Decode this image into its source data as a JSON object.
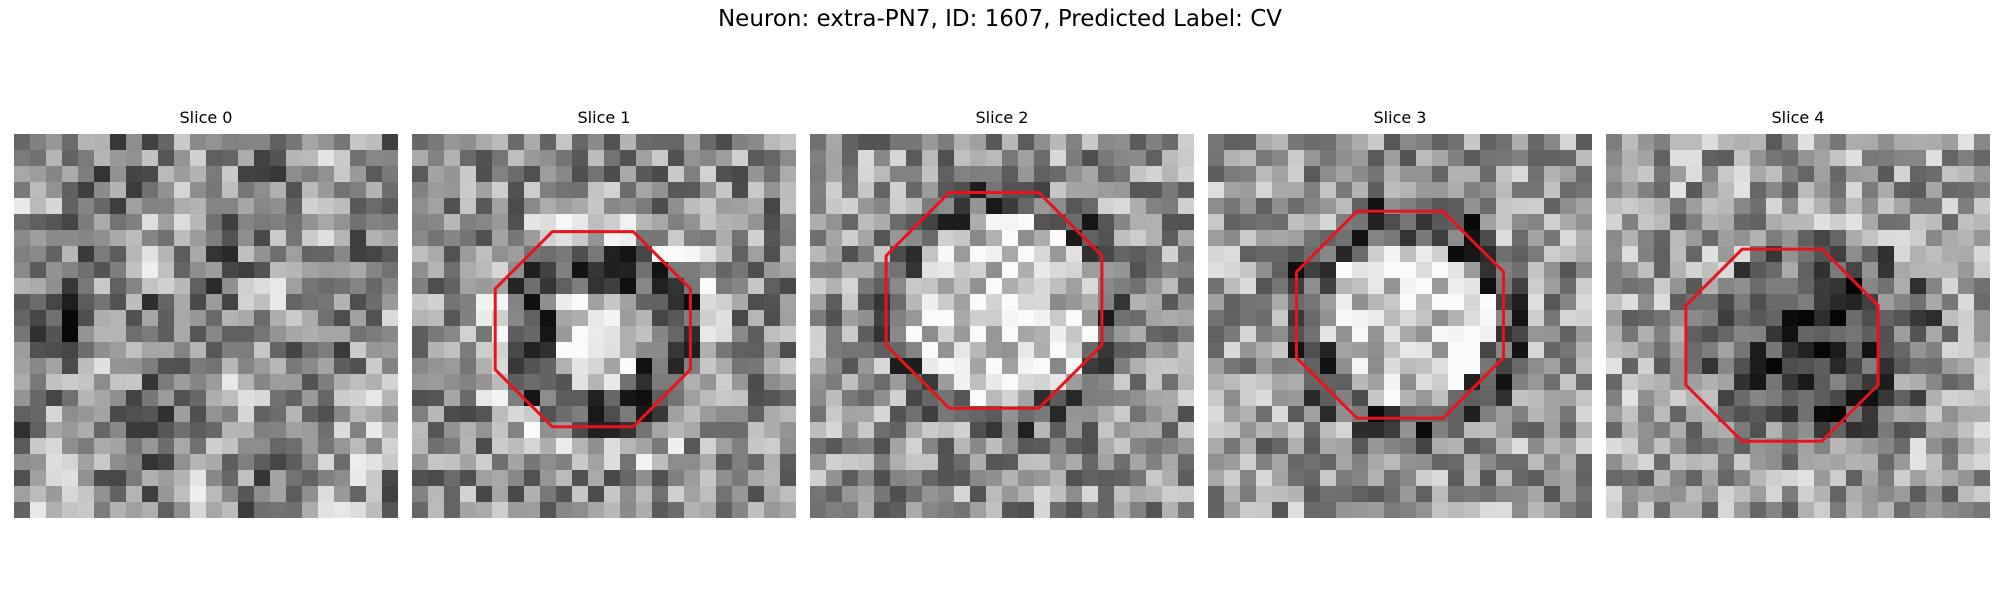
{
  "figure": {
    "suptitle": "Neuron: extra-PN7, ID: 1607, Predicted Label: CV"
  },
  "colors": {
    "contour": "#e8131b",
    "background": "#ffffff"
  },
  "panels": [
    {
      "title": "Slice 0",
      "has_contour": false,
      "seed": 11,
      "pattern": "noise"
    },
    {
      "title": "Slice 1",
      "has_contour": true,
      "seed": 23,
      "pattern": "ring-bright-center"
    },
    {
      "title": "Slice 2",
      "has_contour": true,
      "seed": 37,
      "pattern": "bright-blob"
    },
    {
      "title": "Slice 3",
      "has_contour": true,
      "seed": 53,
      "pattern": "bright-blob-dark-ring"
    },
    {
      "title": "Slice 4",
      "has_contour": true,
      "seed": 71,
      "pattern": "dark-blob"
    }
  ]
}
